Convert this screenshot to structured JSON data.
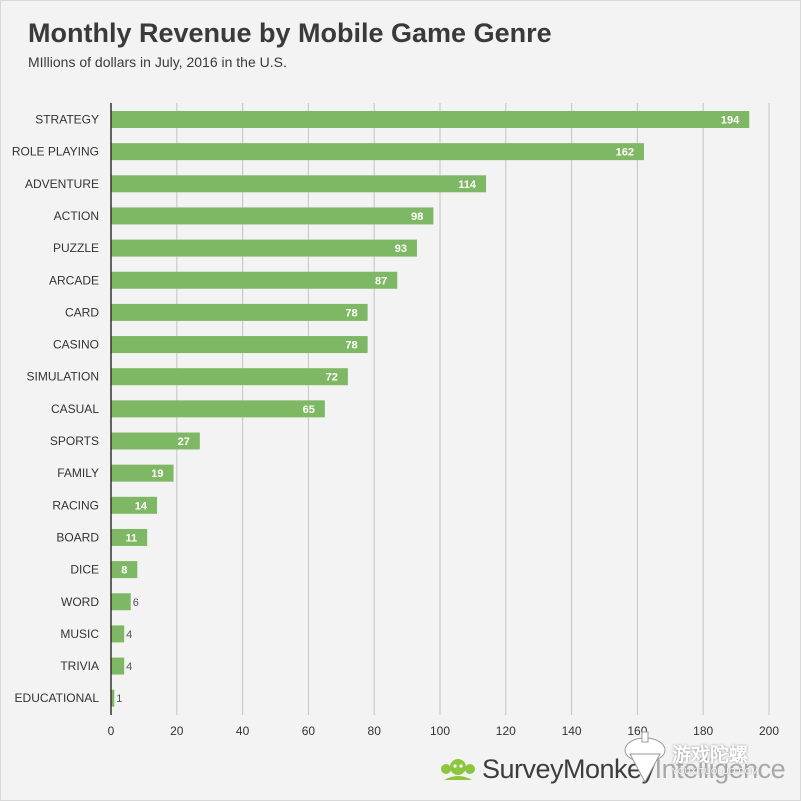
{
  "chart_data": {
    "type": "bar",
    "orientation": "horizontal",
    "title": "Monthly Revenue by Mobile Game Genre",
    "subtitle": "MIllions of dollars in July, 2016 in the U.S.",
    "categories": [
      "STRATEGY",
      "ROLE PLAYING",
      "ADVENTURE",
      "ACTION",
      "PUZZLE",
      "ARCADE",
      "CARD",
      "CASINO",
      "SIMULATION",
      "CASUAL",
      "SPORTS",
      "FAMILY",
      "RACING",
      "BOARD",
      "DICE",
      "WORD",
      "MUSIC",
      "TRIVIA",
      "EDUCATIONAL"
    ],
    "values": [
      194,
      162,
      114,
      98,
      93,
      87,
      78,
      78,
      72,
      65,
      27,
      19,
      14,
      11,
      8,
      6,
      4,
      4,
      1
    ],
    "xlim": [
      0,
      200
    ],
    "xticks": [
      0,
      20,
      40,
      60,
      80,
      100,
      120,
      140,
      160,
      180,
      200
    ],
    "grid": "vertical",
    "bar_color": "#7fb864",
    "xlabel": "",
    "ylabel": ""
  },
  "branding": {
    "name_main": "SurveyMonkey",
    "name_suffix": "Intelligence",
    "logo_icon": "monkey-logo-icon",
    "logo_color": "#8cc63f"
  },
  "watermark": {
    "cn": "游戏陀螺",
    "en": "YOUXITUOLUO.COM",
    "icon": "spinning-top-icon"
  }
}
